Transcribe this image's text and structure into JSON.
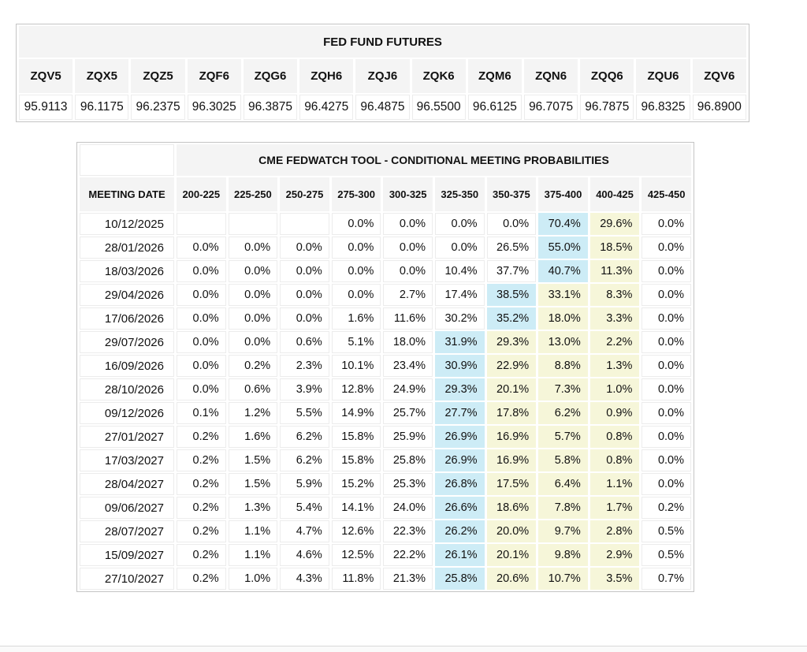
{
  "colors": {
    "header_bg": "#f4f4f4",
    "table_border": "#c4c4c4",
    "cell_border": "#ececec",
    "highlight_blue": "#cdecf6",
    "highlight_yellow": "#f6f6d9",
    "text": "#111111"
  },
  "chart_data": [
    {
      "type": "table",
      "title": "FED FUND FUTURES",
      "columns": [
        "ZQV5",
        "ZQX5",
        "ZQZ5",
        "ZQF6",
        "ZQG6",
        "ZQH6",
        "ZQJ6",
        "ZQK6",
        "ZQM6",
        "ZQN6",
        "ZQQ6",
        "ZQU6",
        "ZQV6"
      ],
      "rows": [
        [
          "95.9113",
          "96.1175",
          "96.2375",
          "96.3025",
          "96.3875",
          "96.4275",
          "96.4875",
          "96.5500",
          "96.6125",
          "96.7075",
          "96.7875",
          "96.8325",
          "96.8900"
        ]
      ]
    },
    {
      "type": "table",
      "title": "CME FEDWATCH TOOL - CONDITIONAL MEETING PROBABILITIES",
      "columns": [
        "MEETING DATE",
        "200-225",
        "225-250",
        "250-275",
        "275-300",
        "300-325",
        "325-350",
        "350-375",
        "375-400",
        "400-425",
        "425-450"
      ],
      "rows": [
        [
          "10/12/2025",
          "",
          "",
          "",
          "0.0%",
          "0.0%",
          "0.0%",
          "0.0%",
          "70.4%",
          "29.6%",
          "0.0%"
        ],
        [
          "28/01/2026",
          "0.0%",
          "0.0%",
          "0.0%",
          "0.0%",
          "0.0%",
          "0.0%",
          "26.5%",
          "55.0%",
          "18.5%",
          "0.0%"
        ],
        [
          "18/03/2026",
          "0.0%",
          "0.0%",
          "0.0%",
          "0.0%",
          "0.0%",
          "10.4%",
          "37.7%",
          "40.7%",
          "11.3%",
          "0.0%"
        ],
        [
          "29/04/2026",
          "0.0%",
          "0.0%",
          "0.0%",
          "0.0%",
          "2.7%",
          "17.4%",
          "38.5%",
          "33.1%",
          "8.3%",
          "0.0%"
        ],
        [
          "17/06/2026",
          "0.0%",
          "0.0%",
          "0.0%",
          "1.6%",
          "11.6%",
          "30.2%",
          "35.2%",
          "18.0%",
          "3.3%",
          "0.0%"
        ],
        [
          "29/07/2026",
          "0.0%",
          "0.0%",
          "0.6%",
          "5.1%",
          "18.0%",
          "31.9%",
          "29.3%",
          "13.0%",
          "2.2%",
          "0.0%"
        ],
        [
          "16/09/2026",
          "0.0%",
          "0.2%",
          "2.3%",
          "10.1%",
          "23.4%",
          "30.9%",
          "22.9%",
          "8.8%",
          "1.3%",
          "0.0%"
        ],
        [
          "28/10/2026",
          "0.0%",
          "0.6%",
          "3.9%",
          "12.8%",
          "24.9%",
          "29.3%",
          "20.1%",
          "7.3%",
          "1.0%",
          "0.0%"
        ],
        [
          "09/12/2026",
          "0.1%",
          "1.2%",
          "5.5%",
          "14.9%",
          "25.7%",
          "27.7%",
          "17.8%",
          "6.2%",
          "0.9%",
          "0.0%"
        ],
        [
          "27/01/2027",
          "0.2%",
          "1.6%",
          "6.2%",
          "15.8%",
          "25.9%",
          "26.9%",
          "16.9%",
          "5.7%",
          "0.8%",
          "0.0%"
        ],
        [
          "17/03/2027",
          "0.2%",
          "1.5%",
          "6.2%",
          "15.8%",
          "25.8%",
          "26.9%",
          "16.9%",
          "5.8%",
          "0.8%",
          "0.0%"
        ],
        [
          "28/04/2027",
          "0.2%",
          "1.5%",
          "5.9%",
          "15.2%",
          "25.3%",
          "26.8%",
          "17.5%",
          "6.4%",
          "1.1%",
          "0.0%"
        ],
        [
          "09/06/2027",
          "0.2%",
          "1.3%",
          "5.4%",
          "14.1%",
          "24.0%",
          "26.6%",
          "18.6%",
          "7.8%",
          "1.7%",
          "0.2%"
        ],
        [
          "28/07/2027",
          "0.2%",
          "1.1%",
          "4.7%",
          "12.6%",
          "22.3%",
          "26.2%",
          "20.0%",
          "9.7%",
          "2.8%",
          "0.5%"
        ],
        [
          "15/09/2027",
          "0.2%",
          "1.1%",
          "4.6%",
          "12.5%",
          "22.2%",
          "26.1%",
          "20.1%",
          "9.8%",
          "2.9%",
          "0.5%"
        ],
        [
          "27/10/2027",
          "0.2%",
          "1.0%",
          "4.3%",
          "11.8%",
          "21.3%",
          "25.8%",
          "20.6%",
          "10.7%",
          "3.5%",
          "0.7%"
        ]
      ],
      "cell_highlights": [
        [
          "",
          "",
          "",
          "",
          "",
          "",
          "",
          "blue",
          "yellow",
          ""
        ],
        [
          "",
          "",
          "",
          "",
          "",
          "",
          "",
          "blue",
          "yellow",
          ""
        ],
        [
          "",
          "",
          "",
          "",
          "",
          "",
          "",
          "blue",
          "yellow",
          ""
        ],
        [
          "",
          "",
          "",
          "",
          "",
          "",
          "blue",
          "yellow",
          "yellow",
          ""
        ],
        [
          "",
          "",
          "",
          "",
          "",
          "",
          "blue",
          "yellow",
          "yellow",
          ""
        ],
        [
          "",
          "",
          "",
          "",
          "",
          "blue",
          "yellow",
          "yellow",
          "yellow",
          ""
        ],
        [
          "",
          "",
          "",
          "",
          "",
          "blue",
          "yellow",
          "yellow",
          "yellow",
          ""
        ],
        [
          "",
          "",
          "",
          "",
          "",
          "blue",
          "yellow",
          "yellow",
          "yellow",
          ""
        ],
        [
          "",
          "",
          "",
          "",
          "",
          "blue",
          "yellow",
          "yellow",
          "yellow",
          ""
        ],
        [
          "",
          "",
          "",
          "",
          "",
          "blue",
          "yellow",
          "yellow",
          "yellow",
          ""
        ],
        [
          "",
          "",
          "",
          "",
          "",
          "blue",
          "yellow",
          "yellow",
          "yellow",
          ""
        ],
        [
          "",
          "",
          "",
          "",
          "",
          "blue",
          "yellow",
          "yellow",
          "yellow",
          ""
        ],
        [
          "",
          "",
          "",
          "",
          "",
          "blue",
          "yellow",
          "yellow",
          "yellow",
          ""
        ],
        [
          "",
          "",
          "",
          "",
          "",
          "blue",
          "yellow",
          "yellow",
          "yellow",
          ""
        ],
        [
          "",
          "",
          "",
          "",
          "",
          "blue",
          "yellow",
          "yellow",
          "yellow",
          ""
        ],
        [
          "",
          "",
          "",
          "",
          "",
          "blue",
          "yellow",
          "yellow",
          "yellow",
          ""
        ]
      ]
    }
  ]
}
